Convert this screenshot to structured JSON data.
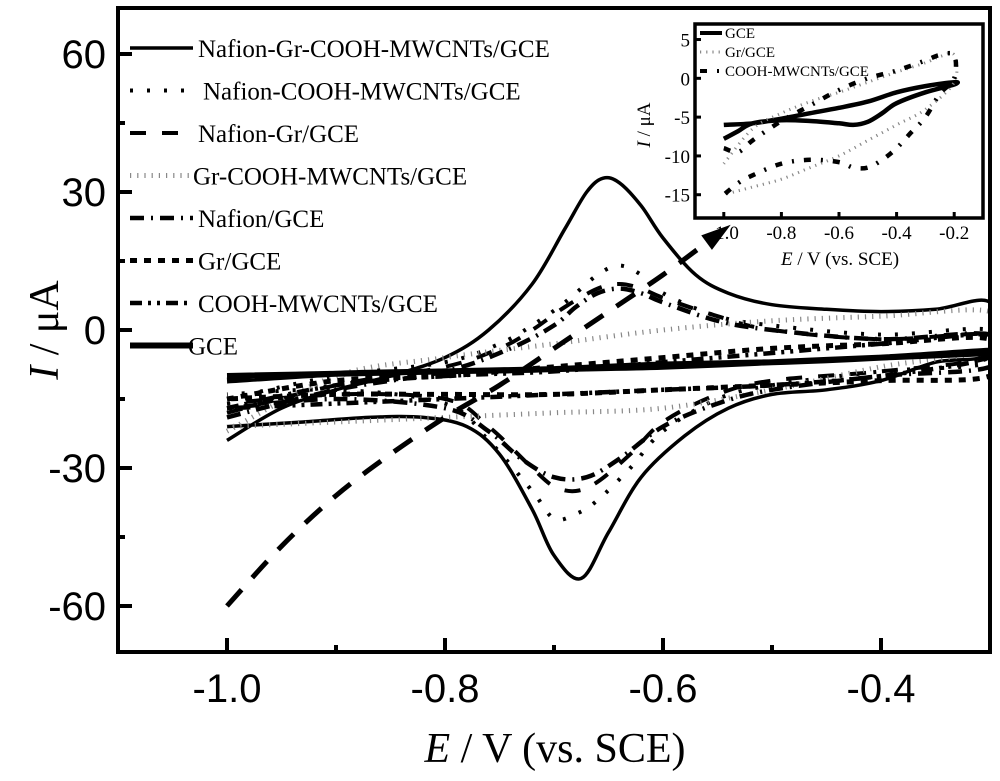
{
  "chart_data": [
    {
      "type": "line",
      "title": "",
      "xlabel_italic": "E",
      "xlabel_rest": " / V (vs. SCE)",
      "ylabel_italic": "I",
      "ylabel_rest": " / μA",
      "xlim": [
        -1.1,
        -0.3
      ],
      "ylim": [
        -70,
        70
      ],
      "xticks": [
        -1.0,
        -0.8,
        -0.6,
        -0.4
      ],
      "xtick_labels": [
        "-1.0",
        "-0.8",
        "-0.6",
        "-0.4"
      ],
      "xminor": [
        -0.9,
        -0.7,
        -0.5
      ],
      "yticks": [
        60,
        30,
        0,
        -30,
        -60
      ],
      "ytick_labels": [
        "60",
        "30",
        "0",
        "-30",
        "-60"
      ],
      "yminor": [
        45,
        15,
        -15,
        -45
      ],
      "grid": false,
      "legend_position": "top-left",
      "series": [
        {
          "name": "Nafion-Gr-COOH-MWCNTs/GCE",
          "style": "solid",
          "x": [
            -1.0,
            -0.95,
            -0.9,
            -0.85,
            -0.8,
            -0.76,
            -0.72,
            -0.69,
            -0.67,
            -0.655,
            -0.64,
            -0.62,
            -0.6,
            -0.57,
            -0.54,
            -0.5,
            -0.45,
            -0.4,
            -0.35,
            -0.3,
            -0.3,
            -0.35,
            -0.4,
            -0.45,
            -0.5,
            -0.54,
            -0.58,
            -0.62,
            -0.65,
            -0.675,
            -0.7,
            -0.72,
            -0.75,
            -0.78,
            -0.82,
            -0.87,
            -0.93,
            -1.0
          ],
          "y": [
            -24,
            -17,
            -13,
            -10,
            -6,
            0,
            10,
            22,
            30,
            33,
            32,
            27,
            20,
            12,
            8,
            5.5,
            4.5,
            4,
            4.5,
            6,
            -5,
            -7,
            -11,
            -13,
            -14,
            -17,
            -23,
            -32,
            -44,
            -54,
            -49,
            -39,
            -27,
            -21,
            -19,
            -19,
            -20,
            -21
          ]
        },
        {
          "name": "Nafion-COOH-MWCNTs/GCE",
          "style": "dotted",
          "x": [
            -1.0,
            -0.9,
            -0.8,
            -0.75,
            -0.72,
            -0.69,
            -0.66,
            -0.64,
            -0.62,
            -0.6,
            -0.55,
            -0.5,
            -0.4,
            -0.3,
            -0.3,
            -0.4,
            -0.5,
            -0.55,
            -0.6,
            -0.63,
            -0.66,
            -0.68,
            -0.7,
            -0.72,
            -0.76,
            -0.8,
            -0.9,
            -1.0
          ],
          "y": [
            -15,
            -10,
            -7,
            -3,
            1,
            6,
            12,
            14,
            12,
            8,
            3,
            1,
            -1,
            0,
            -7,
            -9,
            -12,
            -15,
            -22,
            -30,
            -37,
            -40,
            -41,
            -35,
            -24,
            -16,
            -13,
            -14
          ]
        },
        {
          "name": "Nafion-Gr/GCE",
          "style": "dashed",
          "x": [
            -1.0,
            -0.9,
            -0.8,
            -0.75,
            -0.72,
            -0.69,
            -0.66,
            -0.64,
            -0.62,
            -0.6,
            -0.55,
            -0.5,
            -0.4,
            -0.3,
            -0.3,
            -0.4,
            -0.5,
            -0.55,
            -0.6,
            -0.63,
            -0.66,
            -0.68,
            -0.7,
            -0.72,
            -0.76,
            -0.8,
            -0.9,
            -1.0
          ],
          "y": [
            -18,
            -12,
            -8,
            -4,
            0,
            5,
            9,
            10,
            9,
            7,
            3,
            0,
            -2,
            -1,
            -6,
            -9,
            -11,
            -14,
            -20,
            -27,
            -33,
            -35,
            -34,
            -30,
            -21,
            -15,
            -14,
            -16
          ]
        },
        {
          "name": "Gr-COOH-MWCNTs/GCE",
          "style": "gray-dotted",
          "x": [
            -1.0,
            -0.9,
            -0.8,
            -0.7,
            -0.6,
            -0.5,
            -0.4,
            -0.3,
            -0.3,
            -0.4,
            -0.5,
            -0.6,
            -0.7,
            -0.8,
            -0.9,
            -1.0
          ],
          "y": [
            -22,
            -10,
            -6,
            -3,
            0,
            2,
            3,
            4,
            -4,
            -8,
            -13,
            -17,
            -18,
            -19,
            -20,
            -21
          ]
        },
        {
          "name": "Nafion/GCE",
          "style": "dash-dot",
          "x": [
            -1.0,
            -0.9,
            -0.8,
            -0.74,
            -0.7,
            -0.68,
            -0.66,
            -0.64,
            -0.62,
            -0.6,
            -0.55,
            -0.5,
            -0.4,
            -0.3,
            -0.3,
            -0.4,
            -0.5,
            -0.55,
            -0.6,
            -0.64,
            -0.67,
            -0.7,
            -0.73,
            -0.76,
            -0.8,
            -0.9,
            -1.0
          ],
          "y": [
            -19,
            -13,
            -9,
            -4,
            1,
            5,
            8,
            9,
            8,
            6,
            2,
            0,
            -2,
            -1,
            -8,
            -10,
            -13,
            -16,
            -21,
            -28,
            -32,
            -32,
            -28,
            -22,
            -17,
            -15,
            -17
          ]
        },
        {
          "name": "Gr/GCE",
          "style": "short-dash",
          "x": [
            -1.0,
            -0.9,
            -0.8,
            -0.7,
            -0.6,
            -0.5,
            -0.4,
            -0.3,
            -0.3,
            -0.4,
            -0.5,
            -0.6,
            -0.7,
            -0.8,
            -0.9,
            -1.0
          ],
          "y": [
            -15,
            -11,
            -10,
            -8,
            -6,
            -4,
            -3,
            -2,
            -10,
            -11,
            -12,
            -13,
            -14,
            -14,
            -14,
            -15
          ]
        },
        {
          "name": "COOH-MWCNTs/GCE",
          "style": "dash-dot-dot",
          "x": [
            -1.0,
            -0.9,
            -0.8,
            -0.7,
            -0.6,
            -0.5,
            -0.4,
            -0.3,
            -0.3,
            -0.4,
            -0.5,
            -0.6,
            -0.7,
            -0.8,
            -0.9,
            -1.0
          ],
          "y": [
            -17,
            -12,
            -10,
            -9,
            -7,
            -5,
            -3,
            -1,
            -6,
            -10,
            -12,
            -13,
            -14,
            -15,
            -16,
            -17
          ]
        },
        {
          "name": "GCE",
          "style": "solid-thick",
          "x": [
            -1.0,
            -0.9,
            -0.8,
            -0.7,
            -0.6,
            -0.5,
            -0.4,
            -0.3,
            -0.3,
            -0.4,
            -0.5,
            -0.6,
            -0.7,
            -0.8,
            -0.9,
            -1.0
          ],
          "y": [
            -10,
            -9.5,
            -9,
            -8.5,
            -8,
            -7,
            -6,
            -5,
            -4.5,
            -6,
            -7,
            -7.5,
            -8.5,
            -9,
            -9.5,
            -11
          ]
        }
      ],
      "annotation_arrow": {
        "x": [
          -1.0,
          -0.95,
          -0.9,
          -0.85,
          -0.8,
          -0.75,
          -0.7,
          -0.65,
          -0.6,
          -0.56
        ],
        "y": [
          -60,
          -47,
          -36,
          -27,
          -19,
          -12,
          -4,
          4,
          12,
          19
        ],
        "points_to": "inset"
      }
    },
    {
      "type": "line",
      "title": "",
      "xlabel_italic": "E",
      "xlabel_rest": " / V (vs. SCE)",
      "ylabel_italic": "I",
      "ylabel_rest": " / μA",
      "xlim": [
        -1.1,
        -0.1
      ],
      "ylim": [
        -18,
        7
      ],
      "xticks": [
        -1.0,
        -0.8,
        -0.6,
        -0.4,
        -0.2
      ],
      "xtick_labels": [
        "-1.0",
        "-0.8",
        "-0.6",
        "-0.4",
        "-0.2"
      ],
      "yticks": [
        5,
        0,
        -5,
        -10,
        -15
      ],
      "ytick_labels": [
        "5",
        "0",
        "-5",
        "-10",
        "-15"
      ],
      "grid": false,
      "legend_position": "top-left",
      "series": [
        {
          "name": "GCE",
          "style": "solid-thick",
          "x": [
            -1.0,
            -0.9,
            -0.8,
            -0.7,
            -0.6,
            -0.5,
            -0.4,
            -0.3,
            -0.2,
            -0.2,
            -0.3,
            -0.4,
            -0.45,
            -0.5,
            -0.55,
            -0.6,
            -0.7,
            -0.8,
            -0.9,
            -0.95,
            -1.0
          ],
          "y": [
            -6,
            -5.8,
            -5.2,
            -4.5,
            -3.8,
            -3,
            -1.8,
            -1,
            -0.5,
            -0.8,
            -1.8,
            -3.2,
            -4.5,
            -5.6,
            -6,
            -5.8,
            -5.5,
            -5.4,
            -5.8,
            -6.8,
            -7.8
          ]
        },
        {
          "name": "Gr/GCE",
          "style": "gray-dotted",
          "x": [
            -1.0,
            -0.9,
            -0.8,
            -0.7,
            -0.6,
            -0.5,
            -0.4,
            -0.3,
            -0.25,
            -0.2,
            -0.2,
            -0.3,
            -0.4,
            -0.5,
            -0.6,
            -0.7,
            -0.8,
            -0.9,
            -1.0
          ],
          "y": [
            -11,
            -6.5,
            -4.5,
            -3,
            -1.8,
            -0.5,
            0.8,
            2,
            2.8,
            3,
            -0.5,
            -4,
            -6,
            -8,
            -10,
            -11.5,
            -13,
            -14,
            -15
          ]
        },
        {
          "name": "COOH-MWCNTs/GCE",
          "style": "dash-dot-dot",
          "x": [
            -1.0,
            -0.95,
            -0.9,
            -0.8,
            -0.7,
            -0.6,
            -0.5,
            -0.4,
            -0.3,
            -0.25,
            -0.2,
            -0.2,
            -0.25,
            -0.3,
            -0.35,
            -0.4,
            -0.45,
            -0.5,
            -0.55,
            -0.6,
            -0.7,
            -0.8,
            -0.9,
            -0.95,
            -1.0
          ],
          "y": [
            -9,
            -9.5,
            -8,
            -5.5,
            -3.5,
            -1.5,
            0,
            1,
            2.3,
            3,
            3,
            0,
            -2,
            -5,
            -7,
            -9,
            -10.5,
            -11.5,
            -11.5,
            -10.8,
            -10.5,
            -11,
            -12.5,
            -13.5,
            -15
          ]
        }
      ]
    }
  ]
}
